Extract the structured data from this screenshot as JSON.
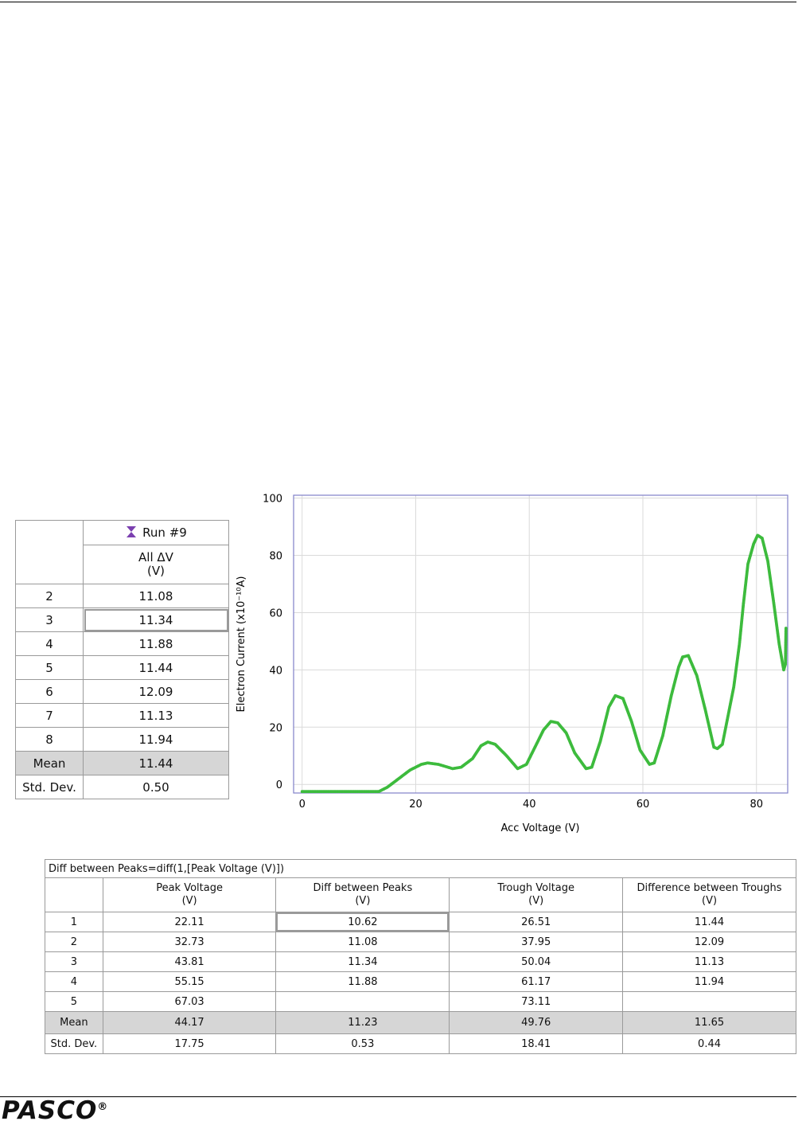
{
  "run_table": {
    "run_label": "Run #9",
    "col_header_line1": "All ΔV",
    "col_header_line2": "(V)",
    "rows": [
      {
        "n": "2",
        "v": "11.08"
      },
      {
        "n": "3",
        "v": "11.34"
      },
      {
        "n": "4",
        "v": "11.88"
      },
      {
        "n": "5",
        "v": "11.44"
      },
      {
        "n": "6",
        "v": "12.09"
      },
      {
        "n": "7",
        "v": "11.13"
      },
      {
        "n": "8",
        "v": "11.94"
      }
    ],
    "mean_label": "Mean",
    "mean_value": "11.44",
    "std_label": "Std. Dev.",
    "std_value": "0.50",
    "run_icon_color": "#7b3fb0"
  },
  "chart_data": {
    "type": "scatter",
    "xlabel": "Acc Voltage (V)",
    "ylabel": "Electron Current (x10⁻¹⁰A)",
    "xlim": [
      -1.5,
      85.5
    ],
    "ylim": [
      -3,
      101
    ],
    "xticks": [
      0,
      20,
      40,
      60,
      80
    ],
    "yticks": [
      0,
      20,
      40,
      60,
      80,
      100
    ],
    "grid": true,
    "series_color": "#3dbb3d",
    "points": [
      [
        0,
        -2.5
      ],
      [
        5,
        -2.5
      ],
      [
        10,
        -2.5
      ],
      [
        13.5,
        -2.5
      ],
      [
        15,
        -1
      ],
      [
        17,
        2
      ],
      [
        19,
        5
      ],
      [
        21,
        7
      ],
      [
        22.1,
        7.5
      ],
      [
        24,
        7
      ],
      [
        26.5,
        5.5
      ],
      [
        28,
        6
      ],
      [
        30,
        9
      ],
      [
        31.5,
        13.5
      ],
      [
        32.7,
        14.8
      ],
      [
        34,
        14
      ],
      [
        36,
        10
      ],
      [
        37.95,
        5.5
      ],
      [
        39.5,
        7
      ],
      [
        41,
        13
      ],
      [
        42.5,
        19
      ],
      [
        43.8,
        22
      ],
      [
        45,
        21.5
      ],
      [
        46.5,
        18
      ],
      [
        48,
        11
      ],
      [
        50,
        5.5
      ],
      [
        51,
        6
      ],
      [
        52.5,
        15
      ],
      [
        54,
        27
      ],
      [
        55.15,
        31
      ],
      [
        56.5,
        30
      ],
      [
        58,
        22
      ],
      [
        59.5,
        12
      ],
      [
        61.17,
        7
      ],
      [
        62,
        7.5
      ],
      [
        63.5,
        17
      ],
      [
        65,
        31
      ],
      [
        66.3,
        41
      ],
      [
        67,
        44.5
      ],
      [
        68,
        45
      ],
      [
        69.5,
        38
      ],
      [
        71,
        26
      ],
      [
        72.5,
        13
      ],
      [
        73.11,
        12.5
      ],
      [
        74,
        14
      ],
      [
        75,
        24
      ],
      [
        76,
        34
      ],
      [
        77,
        49
      ],
      [
        77.7,
        63
      ],
      [
        78.5,
        77
      ],
      [
        79.5,
        84
      ],
      [
        80.2,
        87
      ],
      [
        81,
        86
      ],
      [
        82,
        78
      ],
      [
        83,
        64
      ],
      [
        84,
        49
      ],
      [
        84.8,
        40
      ],
      [
        85.1,
        42
      ],
      [
        85.2,
        55
      ]
    ]
  },
  "diff_table": {
    "formula": "Diff between Peaks=diff(1,[Peak Voltage (V)])",
    "headers": [
      {
        "l1": "Peak Voltage",
        "l2": "(V)"
      },
      {
        "l1": "Diff between Peaks",
        "l2": "(V)"
      },
      {
        "l1": "Trough Voltage",
        "l2": "(V)"
      },
      {
        "l1": "Difference between Troughs",
        "l2": "(V)"
      }
    ],
    "rows": [
      {
        "n": "1",
        "c": [
          "22.11",
          "10.62",
          "26.51",
          "11.44"
        ]
      },
      {
        "n": "2",
        "c": [
          "32.73",
          "11.08",
          "37.95",
          "12.09"
        ]
      },
      {
        "n": "3",
        "c": [
          "43.81",
          "11.34",
          "50.04",
          "11.13"
        ]
      },
      {
        "n": "4",
        "c": [
          "55.15",
          "11.88",
          "61.17",
          "11.94"
        ]
      },
      {
        "n": "5",
        "c": [
          "67.03",
          "",
          "73.11",
          ""
        ]
      }
    ],
    "mean": {
      "label": "Mean",
      "c": [
        "44.17",
        "11.23",
        "49.76",
        "11.65"
      ]
    },
    "std": {
      "label": "Std. Dev.",
      "c": [
        "17.75",
        "0.53",
        "18.41",
        "0.44"
      ]
    }
  },
  "footer": {
    "logo_text": "PASCO",
    "logo_mark": "®"
  }
}
